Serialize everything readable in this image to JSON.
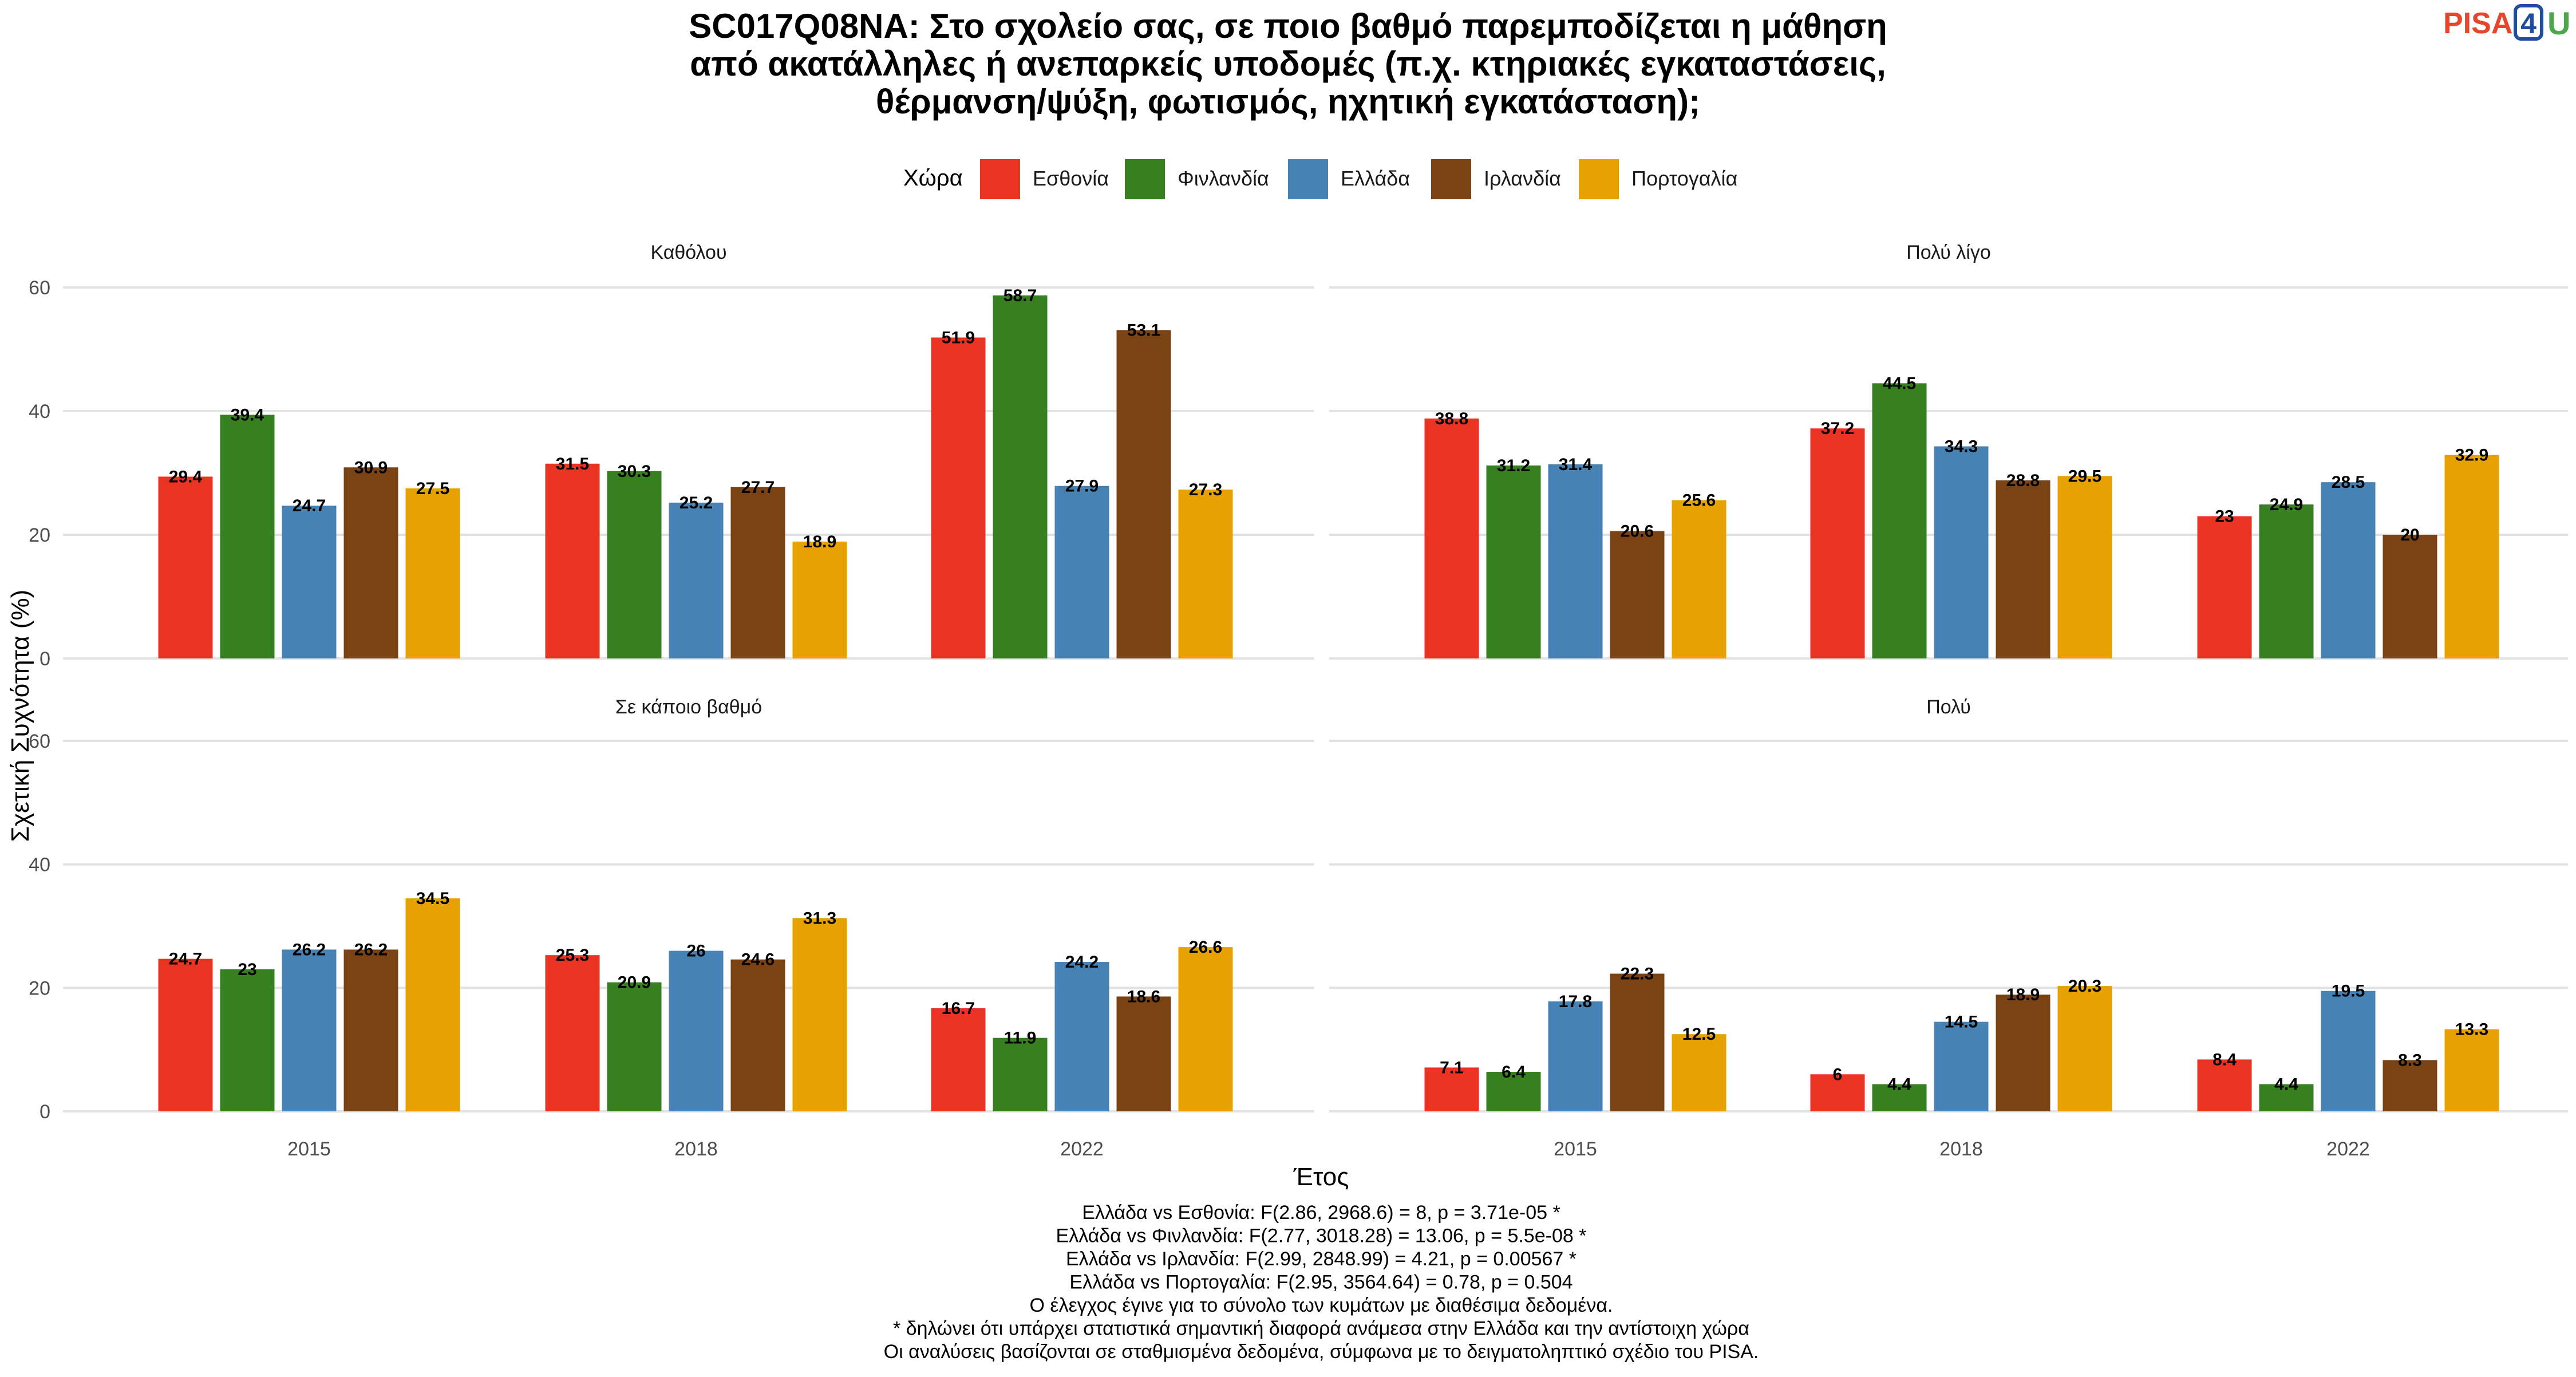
{
  "title_lines": [
    "SC017Q08NA: Στο σχολείο σας, σε ποιο βαθμό παρεμποδίζεται η μάθηση",
    "από ακατάλληλες ή ανεπαρκείς υποδομές (π.χ. κτηριακές εγκαταστάσεις,",
    "θέρμανση/ψύξη, φωτισμός, ηχητική εγκατάσταση);"
  ],
  "logo": {
    "text_main": "PISA",
    "text_num": "4",
    "text_u": "U",
    "colors": {
      "main": "#E8462A",
      "num": "#1F4E9C",
      "u": "#4AA84A"
    }
  },
  "legend": {
    "title": "Χώρα",
    "placement": "top"
  },
  "colors": {
    "Εσθονία": "#EA3323",
    "Φινλανδία": "#36801F",
    "Ελλάδα": "#4682B4",
    "Ιρλανδία": "#7B4313",
    "Πορτογαλία": "#E7A100"
  },
  "footnotes": [
    "Ελλάδα vs Εσθονία: F(2.86, 2968.6) = 8, p = 3.71e-05 *",
    "Ελλάδα vs Φινλανδία: F(2.77, 3018.28) = 13.06, p = 5.5e-08 *",
    "Ελλάδα vs Ιρλανδία: F(2.99, 2848.99) = 4.21, p = 0.00567 *",
    "Ελλάδα vs Πορτογαλία: F(2.95, 3564.64) = 0.78, p = 0.504",
    "Ο έλεγχος έγινε για το σύνολο των κυμάτων με διαθέσιμα δεδομένα.",
    "* δηλώνει ότι υπάρχει στατιστικά σημαντική διαφορά ανάμεσα στην Ελλάδα και την αντίστοιχη χώρα",
    "Οι αναλύσεις βασίζονται σε σταθμισμένα δεδομένα, σύμφωνα με το δειγματοληπτικό σχέδιο του PISA."
  ],
  "chart_data": {
    "type": "bar",
    "xlabel": "Έτος",
    "ylabel": "Σχετική Συχνότητα (%)",
    "ylim": [
      0,
      60
    ],
    "yticks": [
      0,
      20,
      40,
      60
    ],
    "grid": true,
    "categories": [
      "2015",
      "2018",
      "2022"
    ],
    "series_names": [
      "Εσθονία",
      "Φινλανδία",
      "Ελλάδα",
      "Ιρλανδία",
      "Πορτογαλία"
    ],
    "panels": [
      {
        "title": "Καθόλου",
        "series": [
          {
            "name": "Εσθονία",
            "values": [
              29.4,
              31.5,
              51.9
            ]
          },
          {
            "name": "Φινλανδία",
            "values": [
              39.4,
              30.3,
              58.7
            ]
          },
          {
            "name": "Ελλάδα",
            "values": [
              24.7,
              25.2,
              27.9
            ]
          },
          {
            "name": "Ιρλανδία",
            "values": [
              30.9,
              27.7,
              53.1
            ]
          },
          {
            "name": "Πορτογαλία",
            "values": [
              27.5,
              18.9,
              27.3
            ]
          }
        ]
      },
      {
        "title": "Πολύ λίγο",
        "series": [
          {
            "name": "Εσθονία",
            "values": [
              38.8,
              37.2,
              23
            ]
          },
          {
            "name": "Φινλανδία",
            "values": [
              31.2,
              44.5,
              24.9
            ]
          },
          {
            "name": "Ελλάδα",
            "values": [
              31.4,
              34.3,
              28.5
            ]
          },
          {
            "name": "Ιρλανδία",
            "values": [
              20.6,
              28.8,
              20
            ]
          },
          {
            "name": "Πορτογαλία",
            "values": [
              25.6,
              29.5,
              32.9
            ]
          }
        ]
      },
      {
        "title": "Σε κάποιο βαθμό",
        "series": [
          {
            "name": "Εσθονία",
            "values": [
              24.7,
              25.3,
              16.7
            ]
          },
          {
            "name": "Φινλανδία",
            "values": [
              23,
              20.9,
              11.9
            ]
          },
          {
            "name": "Ελλάδα",
            "values": [
              26.2,
              26,
              24.2
            ]
          },
          {
            "name": "Ιρλανδία",
            "values": [
              26.2,
              24.6,
              18.6
            ]
          },
          {
            "name": "Πορτογαλία",
            "values": [
              34.5,
              31.3,
              26.6
            ]
          }
        ]
      },
      {
        "title": "Πολύ",
        "series": [
          {
            "name": "Εσθονία",
            "values": [
              7.1,
              6,
              8.4
            ]
          },
          {
            "name": "Φινλανδία",
            "values": [
              6.4,
              4.4,
              4.4
            ]
          },
          {
            "name": "Ελλάδα",
            "values": [
              17.8,
              14.5,
              19.5
            ]
          },
          {
            "name": "Ιρλανδία",
            "values": [
              22.3,
              18.9,
              8.3
            ]
          },
          {
            "name": "Πορτογαλία",
            "values": [
              12.5,
              20.3,
              13.3
            ]
          }
        ]
      }
    ]
  }
}
